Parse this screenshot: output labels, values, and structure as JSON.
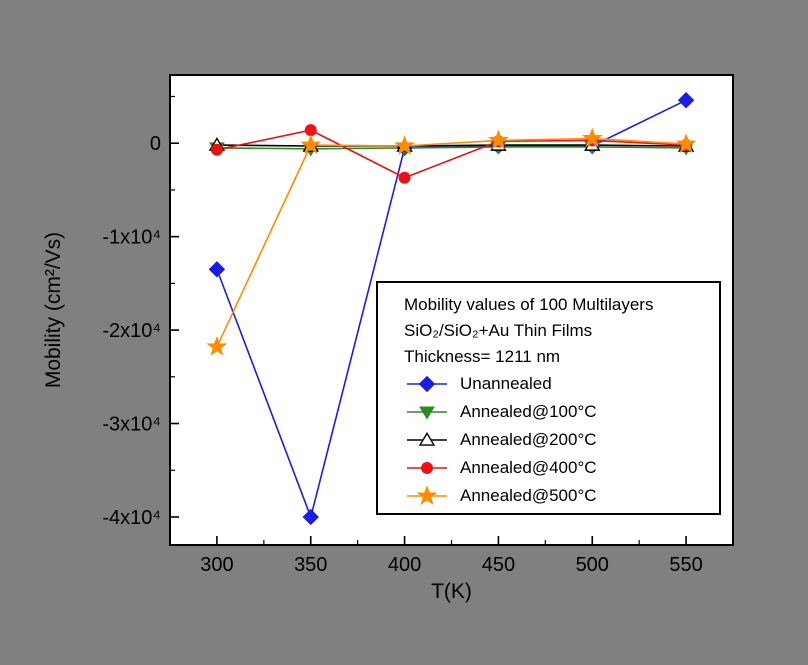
{
  "chart_data": {
    "type": "line",
    "title_lines": [
      "Mobility values of 100 Multilayers",
      "SiO₂/SiO₂+Au Thin Films",
      "Thickness= 1211 nm"
    ],
    "xlabel": "T(K)",
    "ylabel": "Mobility (cm²/Vs)",
    "x": [
      300,
      350,
      400,
      450,
      500,
      550
    ],
    "xlim": [
      275,
      575
    ],
    "ylim": [
      -43000,
      7300
    ],
    "x_ticks": [
      300,
      350,
      400,
      450,
      500,
      550
    ],
    "x_tick_labels": [
      "300",
      "350",
      "400",
      "450",
      "500",
      "550"
    ],
    "x_minor_ticks": [
      325,
      375,
      425,
      475,
      525
    ],
    "y_ticks": [
      0,
      -10000,
      -20000,
      -30000,
      -40000
    ],
    "y_tick_labels": [
      "0",
      "-1x10⁴",
      "-2x10⁴",
      "-3x10⁴",
      "-4x10⁴"
    ],
    "y_minor_ticks": [
      5000,
      -5000,
      -15000,
      -25000,
      -35000
    ],
    "grid": false,
    "legend_position": "middle-right",
    "series": [
      {
        "name": "Unannealed",
        "color": "#1c1ce8",
        "marker": "diamond",
        "values": [
          -13500,
          -40000,
          -500,
          -300,
          -300,
          4600
        ]
      },
      {
        "name": "Annealed@100°C",
        "color": "#2e8b22",
        "marker": "triangle-down",
        "values": [
          -500,
          -600,
          -500,
          -400,
          -400,
          -500
        ]
      },
      {
        "name": "Annealed@200°C",
        "color": "#000000",
        "marker": "triangle-open",
        "values": [
          -200,
          -300,
          -300,
          -200,
          -200,
          -300
        ]
      },
      {
        "name": "Annealed@400°C",
        "color": "#ee1111",
        "marker": "circle",
        "values": [
          -700,
          1400,
          -3700,
          200,
          300,
          -200
        ]
      },
      {
        "name": "Annealed@500°C",
        "color": "#ff8c00",
        "marker": "star",
        "values": [
          -21800,
          -200,
          -300,
          300,
          500,
          -100
        ]
      }
    ],
    "colors": {
      "page_background": "#808080",
      "plot_background": "#ffffff",
      "axis": "#000000"
    }
  }
}
